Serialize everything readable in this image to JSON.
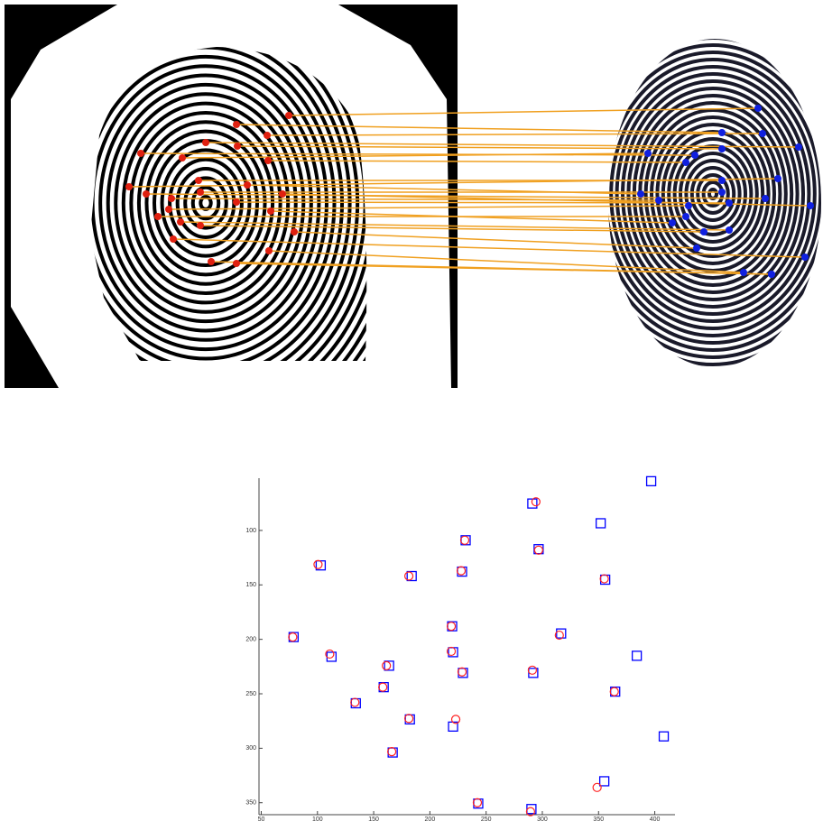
{
  "chart_data": {
    "type": "scatter",
    "xlim": [
      48,
      418
    ],
    "ylim": [
      52,
      361
    ],
    "y_reversed": true,
    "xticks": [
      50,
      100,
      150,
      200,
      250,
      300,
      350,
      400
    ],
    "yticks": [
      100,
      150,
      200,
      250,
      300,
      350
    ],
    "series": [
      {
        "marker": "square",
        "color": "#0000ff",
        "x": [
          291.1,
          396.8,
          351.9,
          231.8,
          296.7,
          102.9,
          183.8,
          228.6,
          355.9,
          78.8,
          219.8,
          316.7,
          112.5,
          220.6,
          384.0,
          163.7,
          229.4,
          291.9,
          158.9,
          364.8,
          134.1,
          182.2,
          220.6,
          408.0,
          166.9,
          355.1,
          243.0,
          290.3
        ],
        "y": [
          75.3,
          54.8,
          93.4,
          109.0,
          117.2,
          132.1,
          141.9,
          137.8,
          145.2,
          197.9,
          188.0,
          194.6,
          216.0,
          211.8,
          215.1,
          224.2,
          230.8,
          230.8,
          243.9,
          248.0,
          258.7,
          273.5,
          280.1,
          289.1,
          303.9,
          330.3,
          350.8,
          355.8
        ]
      },
      {
        "marker": "circle",
        "color": "#ff2020",
        "x": [
          294.3,
          231.0,
          296.7,
          100.5,
          181.3,
          227.8,
          355.1,
          78.0,
          219.0,
          315.1,
          110.9,
          219.0,
          161.3,
          228.6,
          291.1,
          158.1,
          364.0,
          133.3,
          181.3,
          223.0,
          166.1,
          348.7,
          242.2,
          289.5
        ],
        "y": [
          73.7,
          109.0,
          118.1,
          131.3,
          141.9,
          137.0,
          144.4,
          197.9,
          188.0,
          196.2,
          213.5,
          211.0,
          224.2,
          229.9,
          228.3,
          243.9,
          248.0,
          257.9,
          272.7,
          273.5,
          303.1,
          336.0,
          350.0,
          358.2
        ]
      }
    ]
  }
}
